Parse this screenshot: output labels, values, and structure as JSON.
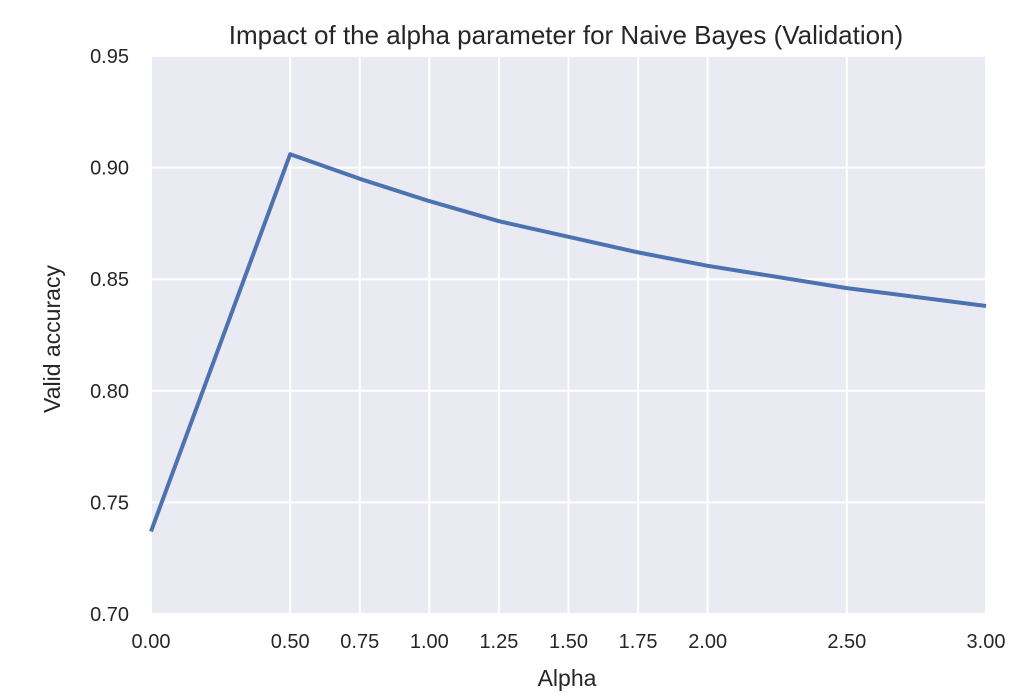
{
  "chart_data": {
    "type": "line",
    "title": "Impact of the alpha parameter for Naive Bayes (Validation)",
    "xlabel": "Alpha",
    "ylabel": "Valid accuracy",
    "xlim": [
      0,
      3
    ],
    "ylim": [
      0.7,
      0.95
    ],
    "xticks": [
      0,
      0.5,
      0.75,
      1,
      1.25,
      1.5,
      1.75,
      2,
      2.5,
      3
    ],
    "xtick_labels": [
      "0.00",
      "0.50",
      "0.75",
      "1.00",
      "1.25",
      "1.50",
      "1.75",
      "2.00",
      "2.50",
      "3.00"
    ],
    "yticks": [
      0.7,
      0.75,
      0.8,
      0.85,
      0.9,
      0.95
    ],
    "ytick_labels": [
      "0.70",
      "0.75",
      "0.80",
      "0.85",
      "0.90",
      "0.95"
    ],
    "grid": true,
    "series": [
      {
        "name": "Valid accuracy",
        "color": "#4c72b0",
        "x": [
          0,
          0.5,
          0.75,
          1,
          1.25,
          1.5,
          1.75,
          2,
          2.5,
          3
        ],
        "y": [
          0.737,
          0.906,
          0.895,
          0.885,
          0.876,
          0.869,
          0.862,
          0.856,
          0.846,
          0.838
        ]
      }
    ]
  },
  "colors": {
    "plot_background": "#eaeaf2",
    "grid": "#ffffff",
    "text": "#262626",
    "line": "#4c72b0"
  }
}
